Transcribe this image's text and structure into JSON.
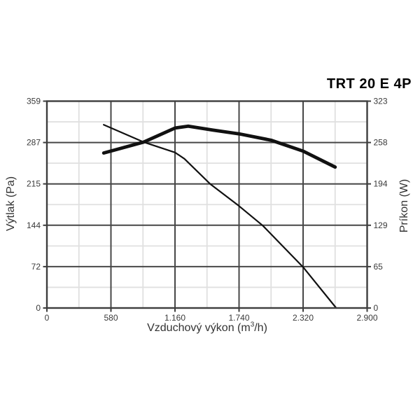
{
  "chart_data": {
    "type": "line",
    "title": "TRT 20 E 4P",
    "xlabel": {
      "text": "Vzduchový výkon (m³/h)",
      "prefix": "Vzduchový výkon (m",
      "sup": "3",
      "suffix": "/h)"
    },
    "ylabel_left": "Výtlak (Pa)",
    "ylabel_right": "Príkon (W)",
    "xlim": [
      0,
      2900
    ],
    "ylim_left": [
      0,
      359
    ],
    "ylim_right": [
      0,
      323
    ],
    "x_tick_labels": [
      "0",
      "580",
      "1.160",
      "1.740",
      "2.320",
      "2.900"
    ],
    "y_left_tick_labels": [
      "0",
      "72",
      "144",
      "215",
      "287",
      "359"
    ],
    "y_right_tick_labels": [
      "0",
      "65",
      "129",
      "194",
      "258",
      "323"
    ],
    "grid": {
      "major": true,
      "minor": true,
      "minor_divisions": 10
    },
    "legend": "none",
    "series": [
      {
        "id": "vytlak",
        "name": "Výtlak (Pa)",
        "axis": "left",
        "thickness": "thin",
        "points": [
          [
            515,
            318
          ],
          [
            875,
            288
          ],
          [
            1160,
            270
          ],
          [
            1245,
            259
          ],
          [
            1480,
            215
          ],
          [
            1740,
            177
          ],
          [
            1955,
            143
          ],
          [
            2320,
            71
          ],
          [
            2620,
            0
          ]
        ]
      },
      {
        "id": "prikon",
        "name": "Príkon (W)",
        "axis": "right",
        "thickness": "thick",
        "points": [
          [
            515,
            242
          ],
          [
            875,
            259
          ],
          [
            1160,
            281
          ],
          [
            1280,
            284
          ],
          [
            1500,
            278
          ],
          [
            1740,
            272
          ],
          [
            2030,
            262
          ],
          [
            2320,
            245
          ],
          [
            2610,
            220
          ]
        ]
      }
    ]
  },
  "colors": {
    "background": "#ffffff",
    "curve": "#111111",
    "grid_major": "#474747",
    "grid_minor": "#e0e0e0",
    "axis": "#3d3d3d",
    "tick_text": "#3a3a3a",
    "title": "#000000",
    "axis_label": "#333333"
  }
}
